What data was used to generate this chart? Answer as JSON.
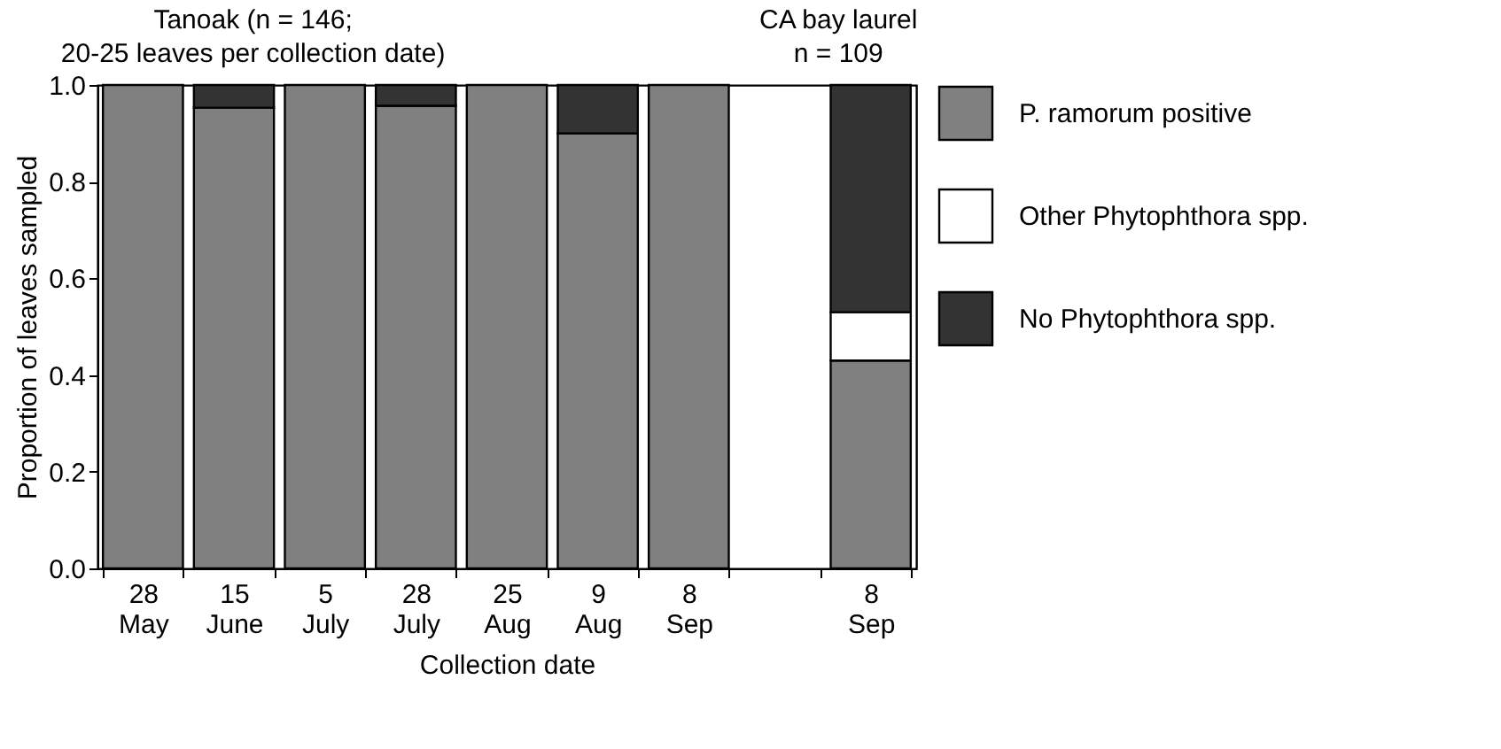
{
  "chart_data": {
    "type": "bar",
    "stacked": true,
    "xlabel": "Collection date",
    "ylabel": "Proportion of leaves sampled",
    "annotations": [
      "Tanoak (n = 146;\n20-25 leaves per collection date)",
      "CA bay laurel\nn = 109"
    ],
    "categories": [
      "28 May",
      "15 June",
      "5 July",
      "28 July",
      "25 Aug",
      "9 Aug",
      "8 Sep",
      null,
      "8 Sep"
    ],
    "series": [
      {
        "name": "P. ramorum positive",
        "color": "#808080",
        "values": [
          1,
          0.953,
          1,
          0.957,
          1,
          0.9,
          1,
          null,
          0.43
        ]
      },
      {
        "name": "Other Phytophthora spp.",
        "color": "#ffffff",
        "values": [
          0,
          0,
          0,
          0,
          0,
          0,
          0,
          null,
          0.1
        ]
      },
      {
        "name": "No Phytophthora spp.",
        "color": "#333333",
        "values": [
          0,
          0.047,
          0,
          0.043,
          0,
          0.1,
          0,
          null,
          0.47
        ]
      }
    ],
    "ylim": [
      0,
      1
    ],
    "yticks": [
      {
        "value": 0,
        "label": "0.0"
      },
      {
        "value": 0.2,
        "label": "0.2"
      },
      {
        "value": 0.4,
        "label": "0.4"
      },
      {
        "value": 0.6,
        "label": "0.6"
      },
      {
        "value": 0.8,
        "label": "0.8"
      },
      {
        "value": 1,
        "label": "1.0"
      }
    ],
    "grid": false,
    "legend": "right"
  }
}
